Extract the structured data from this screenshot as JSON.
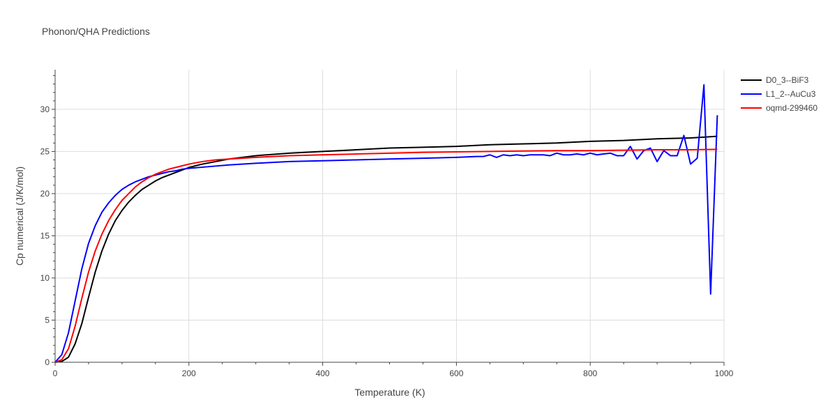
{
  "chart_data": {
    "type": "line",
    "title": "Phonon/QHA Predictions",
    "xlabel": "Temperature (K)",
    "ylabel": "Cp numerical (J/K/mol)",
    "xlim": [
      0,
      1000
    ],
    "ylim": [
      0,
      34.7
    ],
    "xticks": [
      0,
      200,
      400,
      600,
      800,
      1000
    ],
    "yticks": [
      0,
      5,
      10,
      15,
      20,
      25,
      30
    ],
    "grid": true,
    "legend_position": "top-right",
    "series": [
      {
        "name": "D0_3--BiF3",
        "color": "#000000",
        "x": [
          0,
          10,
          20,
          30,
          40,
          50,
          60,
          70,
          80,
          90,
          100,
          110,
          120,
          130,
          140,
          150,
          160,
          170,
          180,
          190,
          200,
          220,
          240,
          260,
          280,
          300,
          350,
          400,
          450,
          500,
          550,
          600,
          650,
          700,
          750,
          800,
          850,
          900,
          950,
          990
        ],
        "y": [
          0,
          0.1,
          0.6,
          2.2,
          4.6,
          7.7,
          10.7,
          13.2,
          15.2,
          16.8,
          18.0,
          19.0,
          19.8,
          20.5,
          21.0,
          21.5,
          21.9,
          22.2,
          22.5,
          22.8,
          23.1,
          23.5,
          23.8,
          24.1,
          24.3,
          24.5,
          24.8,
          25.0,
          25.2,
          25.4,
          25.5,
          25.6,
          25.8,
          25.9,
          26.0,
          26.2,
          26.3,
          26.5,
          26.6,
          26.8
        ]
      },
      {
        "name": "L1_2--AuCu3",
        "color": "#0000ff",
        "x": [
          0,
          10,
          20,
          30,
          40,
          50,
          60,
          70,
          80,
          90,
          100,
          110,
          120,
          130,
          140,
          150,
          160,
          170,
          180,
          190,
          200,
          230,
          260,
          300,
          350,
          400,
          450,
          500,
          550,
          600,
          630,
          640,
          650,
          660,
          670,
          680,
          690,
          700,
          710,
          720,
          730,
          740,
          750,
          760,
          770,
          780,
          790,
          800,
          810,
          820,
          830,
          840,
          850,
          860,
          870,
          880,
          890,
          900,
          910,
          920,
          930,
          940,
          950,
          960,
          970,
          980,
          990
        ],
        "y": [
          0,
          0.9,
          3.5,
          7.3,
          11.1,
          14.1,
          16.2,
          17.8,
          18.9,
          19.8,
          20.5,
          21.0,
          21.4,
          21.7,
          22.0,
          22.2,
          22.4,
          22.6,
          22.7,
          22.9,
          23.0,
          23.2,
          23.4,
          23.6,
          23.8,
          23.9,
          24.0,
          24.1,
          24.2,
          24.3,
          24.4,
          24.4,
          24.6,
          24.3,
          24.6,
          24.5,
          24.6,
          24.5,
          24.6,
          24.6,
          24.6,
          24.5,
          24.8,
          24.6,
          24.6,
          24.7,
          24.6,
          24.8,
          24.6,
          24.7,
          24.8,
          24.5,
          24.5,
          25.6,
          24.1,
          25.1,
          25.4,
          23.8,
          25.1,
          24.5,
          24.5,
          26.9,
          23.5,
          24.2,
          32.9,
          8.1,
          29.3
        ]
      },
      {
        "name": "oqmd-299460",
        "color": "#ff0000",
        "x": [
          0,
          10,
          20,
          30,
          40,
          50,
          60,
          70,
          80,
          90,
          100,
          110,
          120,
          130,
          140,
          150,
          160,
          170,
          180,
          190,
          200,
          220,
          240,
          260,
          280,
          300,
          350,
          400,
          450,
          500,
          550,
          600,
          650,
          700,
          750,
          800,
          850,
          900,
          950,
          990
        ],
        "y": [
          0,
          0.3,
          1.6,
          4.3,
          7.6,
          10.7,
          13.2,
          15.2,
          16.8,
          18.1,
          19.2,
          20.0,
          20.8,
          21.4,
          21.9,
          22.3,
          22.6,
          22.9,
          23.1,
          23.3,
          23.5,
          23.8,
          24.0,
          24.1,
          24.2,
          24.3,
          24.5,
          24.6,
          24.7,
          24.8,
          24.9,
          24.95,
          25.0,
          25.05,
          25.1,
          25.1,
          25.15,
          25.2,
          25.2,
          25.25
        ]
      }
    ]
  }
}
